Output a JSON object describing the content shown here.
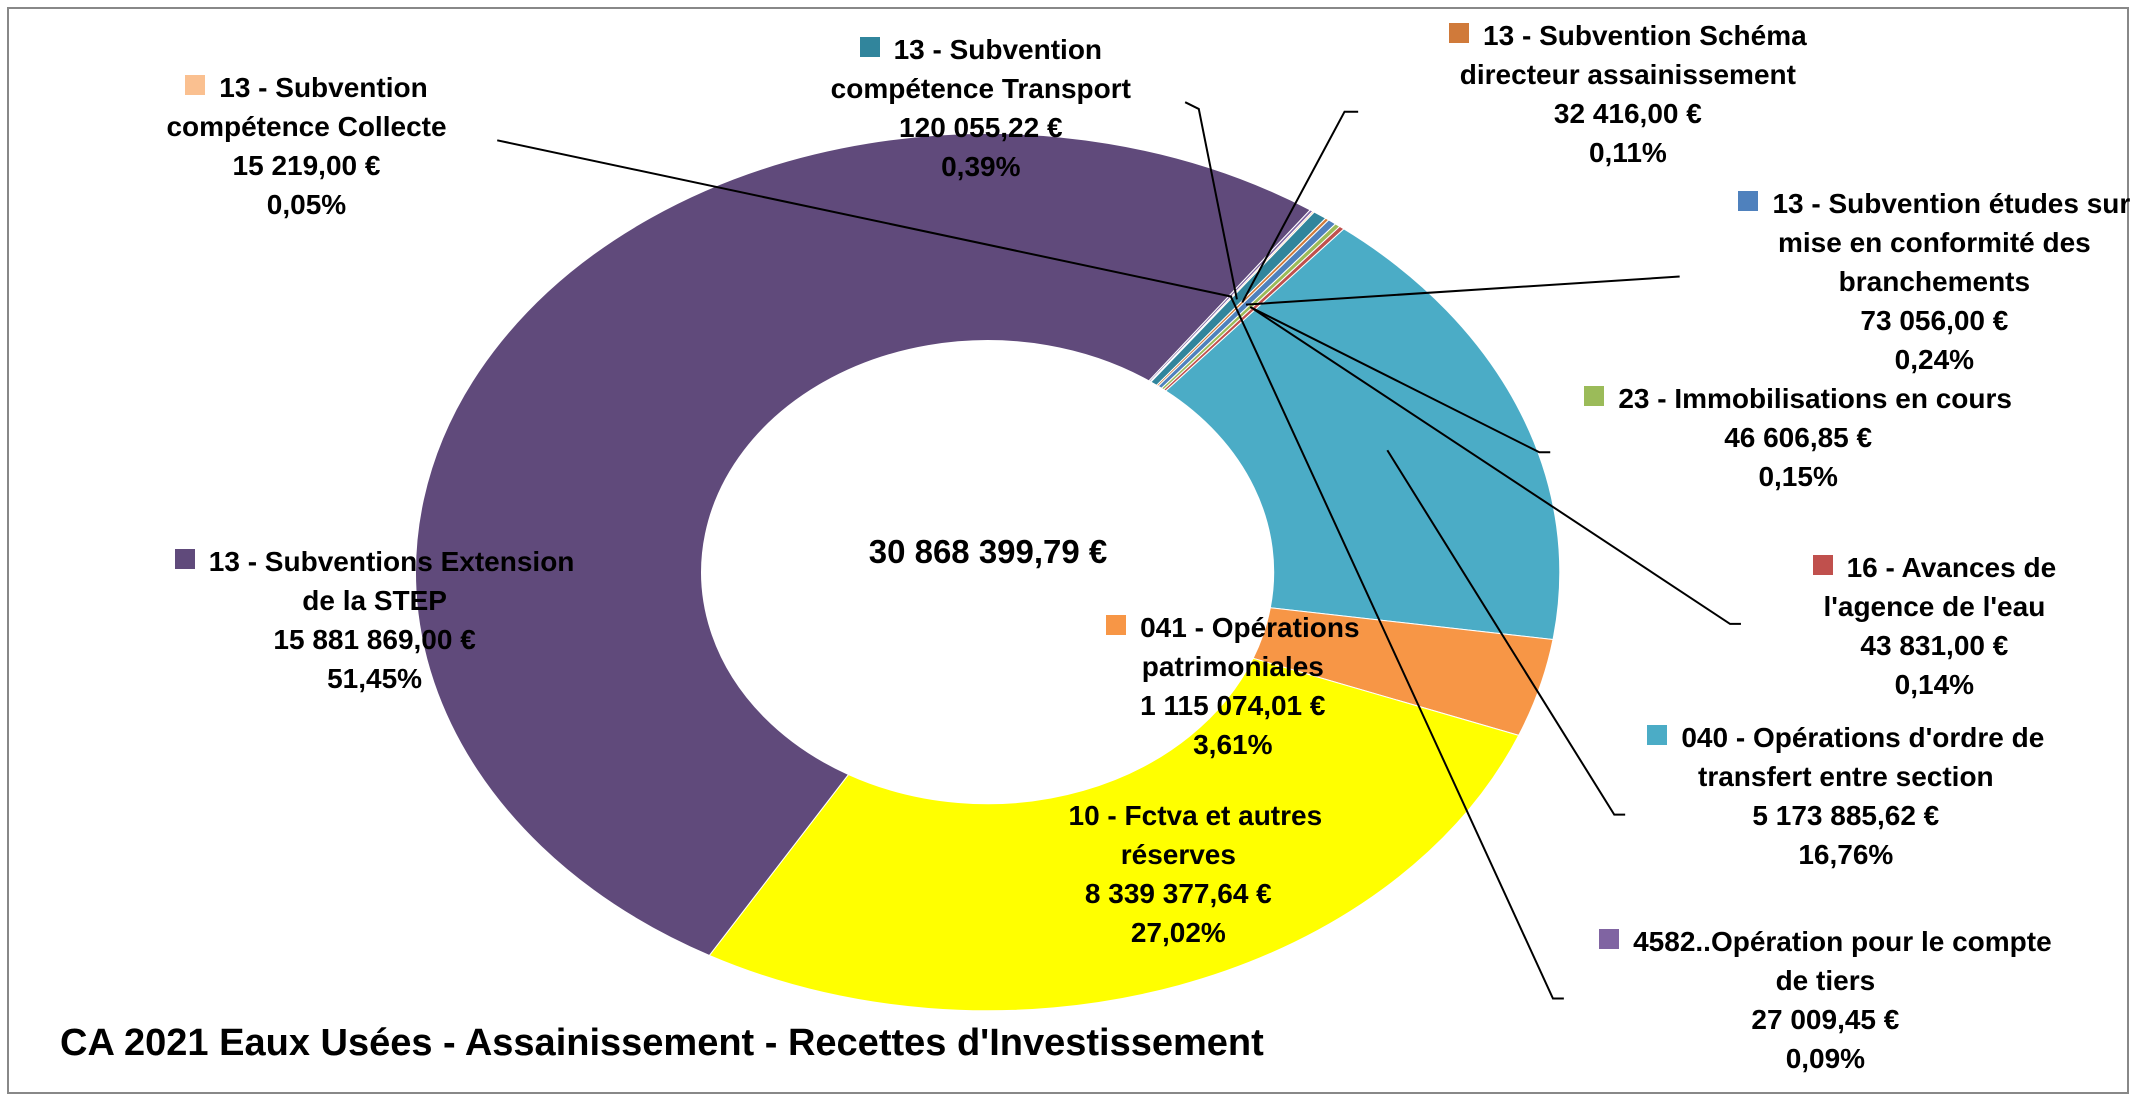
{
  "chart_data": {
    "type": "donut",
    "title": "CA 2021 Eaux Usées - Assainissement - Recettes d'Investissement",
    "center_label": "30 868 399,79 €",
    "categories": [
      "040 - Opérations d'ordre de transfert entre section",
      "041 - Opérations patrimoniales",
      "10 - Fctva et autres réserves",
      "13 - Subventions Extension de la STEP",
      "4582..Opération pour le compte de tiers",
      "13 - Subvention compétence Collecte",
      "13 - Subvention compétence Transport",
      "13 - Subvention Schéma directeur assainissement",
      "13 - Subvention études sur mise en conformité des branchements",
      "23 - Immobilisations en cours",
      "16 - Avances de l'agence de l'eau"
    ],
    "values": [
      5173885.62,
      1115074.01,
      8339377.64,
      15881869.0,
      27009.45,
      15219.0,
      120055.22,
      32416.0,
      73056.0,
      46606.85,
      43831.0
    ],
    "value_labels": [
      "5 173 885,62 €",
      "1 115 074,01 €",
      "8 339 377,64 €",
      "15 881 869,00 €",
      "27 009,45 €",
      "15 219,00 €",
      "120 055,22 €",
      "32 416,00 €",
      "73 056,00 €",
      "46 606,85 €",
      "43 831,00 €"
    ],
    "percentages": [
      16.76,
      3.61,
      27.02,
      51.45,
      0.09,
      0.05,
      0.39,
      0.11,
      0.24,
      0.15,
      0.14
    ],
    "percentage_labels": [
      "16,76%",
      "3,61%",
      "27,02%",
      "51,45%",
      "0,09%",
      "0,05%",
      "0,39%",
      "0,11%",
      "0,24%",
      "0,15%",
      "0,14%"
    ],
    "colors": [
      "#4BACC6",
      "#F79646",
      "#FFFF00",
      "#604A7B",
      "#8064A2",
      "#FAC090",
      "#31859C",
      "#D07A3A",
      "#4F81BD",
      "#9BBB59",
      "#C0504D"
    ]
  }
}
